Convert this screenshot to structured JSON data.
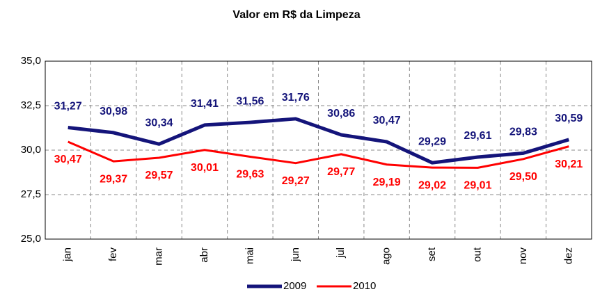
{
  "chart_data": {
    "type": "line",
    "title": "Valor em R$ da Limpeza",
    "categories": [
      "jan",
      "fev",
      "mar",
      "abr",
      "mai",
      "jun",
      "jul",
      "ago",
      "set",
      "out",
      "nov",
      "dez"
    ],
    "series": [
      {
        "name": "2009",
        "color": "#14147a",
        "values": [
          31.27,
          30.98,
          30.34,
          31.41,
          31.56,
          31.76,
          30.86,
          30.47,
          29.29,
          29.61,
          29.83,
          30.59
        ],
        "value_labels": [
          "31,27",
          "30,98",
          "30,34",
          "31,41",
          "31,56",
          "31,76",
          "30,86",
          "30,47",
          "29,29",
          "29,61",
          "29,83",
          "30,59"
        ]
      },
      {
        "name": "2010",
        "color": "#ff0000",
        "values": [
          30.47,
          29.37,
          29.57,
          30.01,
          29.63,
          29.27,
          29.77,
          29.19,
          29.02,
          29.01,
          29.5,
          30.21
        ],
        "value_labels": [
          "30,47",
          "29,37",
          "29,57",
          "30,01",
          "29,63",
          "29,27",
          "29,77",
          "29,19",
          "29,02",
          "29,01",
          "29,50",
          "30,21"
        ]
      }
    ],
    "ylim": [
      25,
      35
    ],
    "yticks": [
      {
        "value": 25,
        "label": "25,0"
      },
      {
        "value": 27.5,
        "label": "27,5"
      },
      {
        "value": 30,
        "label": "30,0"
      },
      {
        "value": 32.5,
        "label": "32,5"
      },
      {
        "value": 35,
        "label": "35,0"
      }
    ],
    "grid": true,
    "legend": "bottom"
  }
}
